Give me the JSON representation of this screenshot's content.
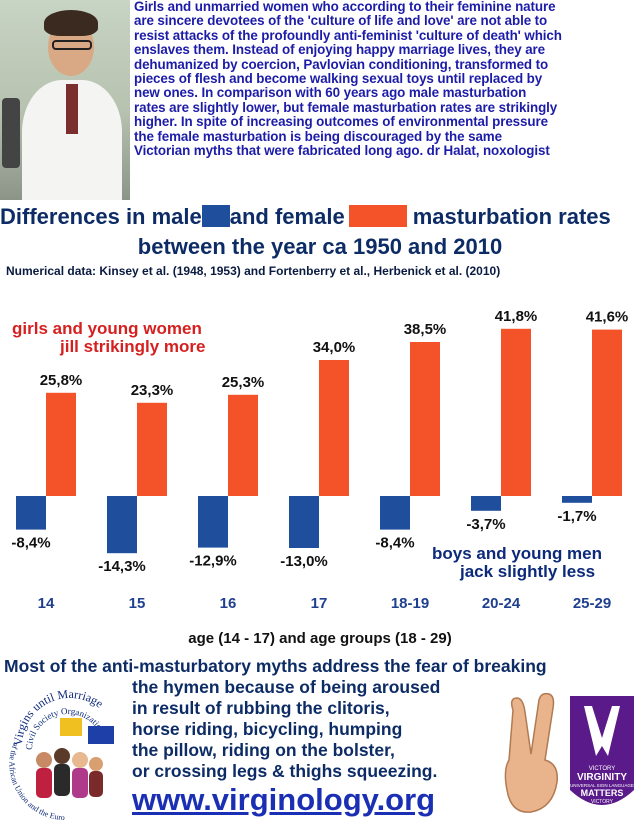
{
  "intro": {
    "lines": [
      "Girls and unmarried women who according to their feminine nature",
      "are sincere devotees of the 'culture of life and love' are not able to",
      "resist attacks of the profoundly anti-feminist 'culture of death' which",
      "enslaves them. Instead of enjoying happy marriage lives, they are",
      "dehumanized by coercion, Pavlovian conditioning, transformed to",
      "pieces of flesh  and become walking sexual toys until replaced by",
      "new ones. In comparison with 60 years ago male masturbation",
      "rates are slightly lower, but female masturbation rates are strikingly",
      "higher.  In spite of increasing outcomes of environmental pressure",
      "the female masturbation is being discouraged by the same",
      "Victorian myths that were fabricated long ago.   dr Halat, noxologist"
    ]
  },
  "colors": {
    "male": "#1f4e9c",
    "female": "#f4532a",
    "label_blue": "#1f3f8f",
    "annotation_red": "#d62020",
    "annotation_blue": "#0d2a7a"
  },
  "title": {
    "part1": "Differences in male",
    "part2": "and female",
    "part3": "masturbation rates",
    "line2": "between the year ca 1950 and 2010"
  },
  "source_note": "Numerical data: Kinsey et al.  (1948, 1953) and Fortenberry et al., Herbenick et al. (2010)",
  "chart_data": {
    "type": "bar",
    "categories": [
      "14",
      "15",
      "16",
      "17",
      "18-19",
      "20-24",
      "25-29"
    ],
    "series": [
      {
        "values": [
          -8.4,
          -14.3,
          -12.9,
          -13.0,
          -8.4,
          -3.7,
          -1.7
        ],
        "labels": [
          "-8,4%",
          "-14,3%",
          "-12,9%",
          "-13,0%",
          "-8,4%",
          "-3,7%",
          "-1,7%"
        ]
      },
      {
        "values": [
          25.8,
          23.3,
          25.3,
          34.0,
          38.5,
          41.8,
          41.6
        ],
        "labels": [
          "25,8%",
          "23,3%",
          "25,3%",
          "34,0%",
          "38,5%",
          "41,8%",
          "41,6%"
        ]
      }
    ],
    "ylim": [
      -15,
      42
    ],
    "grid": false,
    "annotations": {
      "female_line1": "girls and young women",
      "female_line2": "jill strikingly more",
      "male_line1": "boys and young men",
      "male_line2": "jack slightly less"
    }
  },
  "x_caption": "age (14 - 17) and age groups (18 - 29)",
  "footer": {
    "lines": [
      "Most of  the anti-masturbatory myths address the fear of  breaking",
      "the hymen because of being aroused",
      "in result of rubbing the clitoris,",
      "horse riding, bicycling, humping",
      "the pillow, riding on the bolster,",
      "or crossing legs & thighs squeezing."
    ],
    "url": "www.virginology.org"
  },
  "org_logo": {
    "arc_text": "Virgins until Marriage",
    "arc_text2": "Civil Society Organization",
    "arc_text3": "of the African Union and the European Union"
  },
  "badge": {
    "line1": "VICTORY",
    "line2": "VIRGINITY",
    "line3": "UNIVERSAL SIGN LANGUAGE",
    "line4": "MATTERS",
    "line5": "VICTORY",
    "line6": "VICTORY"
  }
}
